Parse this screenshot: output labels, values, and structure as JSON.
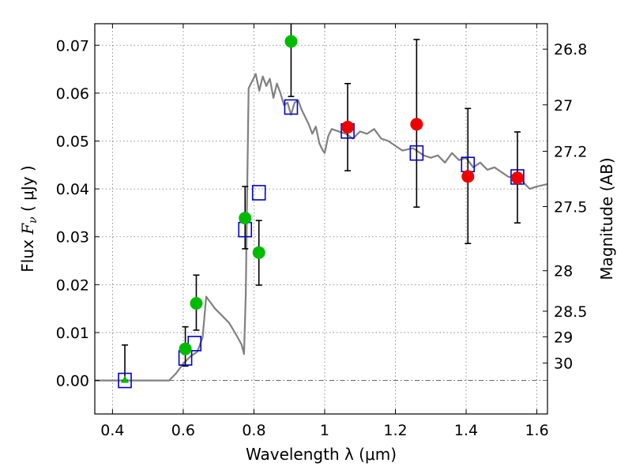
{
  "chart_data": {
    "type": "scatter",
    "xlabel": "Wavelength  λ (μm)",
    "ylabel": "Flux  F_ν  ( μJy )",
    "y2label": "Magnitude (AB)",
    "xlim": [
      0.35,
      1.63
    ],
    "ylim": [
      -0.007,
      0.0745
    ],
    "grid": true,
    "x_ticks": [
      0.4,
      0.6,
      0.8,
      1.0,
      1.2,
      1.4,
      1.6
    ],
    "x_tick_labels": [
      "0.4",
      "0.6",
      "0.8",
      "1",
      "1.2",
      "1.4",
      "1.6"
    ],
    "y_ticks": [
      0.0,
      0.01,
      0.02,
      0.03,
      0.04,
      0.05,
      0.06,
      0.07
    ],
    "y_tick_labels": [
      "0.00",
      "0.01",
      "0.02",
      "0.03",
      "0.04",
      "0.05",
      "0.06",
      "0.07"
    ],
    "y2_ticks": [
      {
        "label": "26.8",
        "mag": 26.8
      },
      {
        "label": "27",
        "mag": 27.0
      },
      {
        "label": "27.2",
        "mag": 27.2
      },
      {
        "label": "27.5",
        "mag": 27.5
      },
      {
        "label": "28",
        "mag": 28.0
      },
      {
        "label": "28.5",
        "mag": 28.5
      },
      {
        "label": "29",
        "mag": 29.0
      },
      {
        "label": "30",
        "mag": 30.0
      }
    ],
    "model_spectrum": {
      "color": "#808080",
      "x": [
        0.35,
        0.56,
        0.58,
        0.6,
        0.62,
        0.64,
        0.655,
        0.665,
        0.675,
        0.69,
        0.71,
        0.73,
        0.75,
        0.765,
        0.772,
        0.777,
        0.785,
        0.795,
        0.805,
        0.815,
        0.825,
        0.835,
        0.845,
        0.855,
        0.865,
        0.875,
        0.885,
        0.895,
        0.905,
        0.915,
        0.925,
        0.935,
        0.945,
        0.955,
        0.965,
        0.975,
        0.985,
        0.995,
        1.0,
        1.01,
        1.02,
        1.04,
        1.06,
        1.08,
        1.1,
        1.12,
        1.14,
        1.16,
        1.18,
        1.2,
        1.22,
        1.25,
        1.28,
        1.3,
        1.32,
        1.34,
        1.36,
        1.38,
        1.4,
        1.42,
        1.44,
        1.46,
        1.48,
        1.5,
        1.52,
        1.54,
        1.56,
        1.58,
        1.6,
        1.63
      ],
      "y": [
        0.0,
        0.0,
        0.0015,
        0.0035,
        0.005,
        0.006,
        0.009,
        0.0175,
        0.0165,
        0.015,
        0.0135,
        0.012,
        0.0095,
        0.0075,
        0.0055,
        0.018,
        0.061,
        0.0625,
        0.064,
        0.0605,
        0.0635,
        0.0615,
        0.063,
        0.059,
        0.062,
        0.06,
        0.0575,
        0.058,
        0.0555,
        0.058,
        0.0585,
        0.0565,
        0.055,
        0.0535,
        0.0515,
        0.053,
        0.0495,
        0.048,
        0.0475,
        0.051,
        0.0525,
        0.052,
        0.0515,
        0.0505,
        0.052,
        0.0515,
        0.0525,
        0.0505,
        0.05,
        0.049,
        0.048,
        0.0485,
        0.047,
        0.0465,
        0.047,
        0.0455,
        0.0475,
        0.046,
        0.0465,
        0.0445,
        0.0455,
        0.044,
        0.0445,
        0.0435,
        0.0425,
        0.0425,
        0.0415,
        0.04,
        0.0405,
        0.041
      ]
    },
    "model_photometry": {
      "color": "#0000cc",
      "x": [
        0.435,
        0.606,
        0.632,
        0.775,
        0.814,
        0.905,
        1.065,
        1.26,
        1.405,
        1.545
      ],
      "y": [
        0.0,
        0.0047,
        0.0077,
        0.0315,
        0.0392,
        0.0571,
        0.0521,
        0.0475,
        0.0451,
        0.0425
      ]
    },
    "observed_green": {
      "color": "#00bb00",
      "x": [
        0.606,
        0.637,
        0.775,
        0.814,
        0.905
      ],
      "y": [
        0.0066,
        0.0161,
        0.0339,
        0.0267,
        0.0708
      ],
      "err_low": [
        0.0036,
        0.0056,
        0.0064,
        0.0068,
        0.0115
      ],
      "err_high": [
        0.0046,
        0.0059,
        0.0066,
        0.0067,
        0.0115
      ]
    },
    "observed_green_triangle": {
      "color": "#00bb00",
      "x": [
        0.435
      ],
      "y": [
        0.0
      ],
      "err_high": [
        0.0074
      ]
    },
    "observed_red": {
      "color": "#ee0000",
      "x": [
        1.065,
        1.26,
        1.405,
        1.545
      ],
      "y": [
        0.0529,
        0.0535,
        0.0426,
        0.0423
      ],
      "err_low": [
        0.0091,
        0.0173,
        0.014,
        0.0094
      ],
      "err_high": [
        0.0091,
        0.0177,
        0.0142,
        0.0096
      ]
    }
  }
}
